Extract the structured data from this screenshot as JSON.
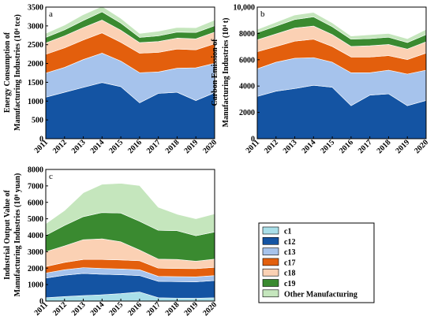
{
  "colors": {
    "c1": "#a9dfe9",
    "c12": "#1454a3",
    "c13": "#a6c3ec",
    "c17": "#e35f0d",
    "c18": "#fbd1b4",
    "c19": "#3a8a30",
    "Other Manufacturing": "#c5e6bd"
  },
  "legend": [
    "c1",
    "c12",
    "c13",
    "c17",
    "c18",
    "c19",
    "Other Manufacturing"
  ],
  "chart_data": [
    {
      "type": "area",
      "stacked": true,
      "panel_label": "a",
      "x": [
        "2011",
        "2012",
        "2013",
        "2014",
        "2015",
        "2016",
        "2017",
        "2018",
        "2019",
        "2020"
      ],
      "ylabel_lines": [
        "Energy Consumption of",
        "Manufacturing Industries (10⁴ tce)"
      ],
      "ylim": [
        0,
        3500
      ],
      "yticks": [
        "0",
        "500",
        "1000",
        "1500",
        "2000",
        "2500",
        "3000",
        "3500"
      ],
      "ytick_values": [
        0,
        500,
        1000,
        1500,
        2000,
        2500,
        3000,
        3500
      ],
      "series": [
        {
          "name": "c1",
          "values": [
            5,
            5,
            5,
            5,
            5,
            5,
            5,
            5,
            5,
            5
          ]
        },
        {
          "name": "c12",
          "values": [
            1100,
            1230,
            1360,
            1490,
            1380,
            950,
            1200,
            1230,
            1010,
            1220
          ]
        },
        {
          "name": "c13",
          "values": [
            640,
            660,
            740,
            780,
            680,
            800,
            570,
            640,
            870,
            780
          ]
        },
        {
          "name": "c17",
          "values": [
            500,
            520,
            520,
            540,
            500,
            520,
            520,
            510,
            480,
            520
          ]
        },
        {
          "name": "c18",
          "values": [
            300,
            320,
            330,
            340,
            320,
            280,
            290,
            290,
            290,
            310
          ]
        },
        {
          "name": "c19",
          "values": [
            150,
            160,
            190,
            220,
            190,
            140,
            150,
            160,
            170,
            170
          ]
        },
        {
          "name": "Other Manufacturing",
          "values": [
            105,
            125,
            155,
            145,
            125,
            105,
            125,
            125,
            125,
            150
          ]
        }
      ]
    },
    {
      "type": "area",
      "stacked": true,
      "panel_label": "b",
      "x": [
        "2011",
        "2012",
        "2013",
        "2014",
        "2015",
        "2016",
        "2017",
        "2018",
        "2019",
        "2020"
      ],
      "ylabel_lines": [
        "Carbon Emission of",
        "Manufacturing Industries (10⁴ t)"
      ],
      "ylim": [
        0,
        10000
      ],
      "yticks": [
        "0",
        "2000",
        "4000",
        "6000",
        "8000",
        "10,000"
      ],
      "ytick_values": [
        0,
        2000,
        4000,
        6000,
        8000,
        10000
      ],
      "series": [
        {
          "name": "c1",
          "values": [
            10,
            10,
            10,
            10,
            10,
            10,
            10,
            10,
            10,
            10
          ]
        },
        {
          "name": "c12",
          "values": [
            3200,
            3600,
            3800,
            4050,
            3900,
            2500,
            3300,
            3400,
            2500,
            2900
          ]
        },
        {
          "name": "c13",
          "values": [
            2100,
            2200,
            2300,
            2100,
            1900,
            2500,
            1700,
            1800,
            2400,
            2300
          ]
        },
        {
          "name": "c17",
          "values": [
            1300,
            1200,
            1300,
            1400,
            1200,
            1200,
            1200,
            1100,
            1100,
            1300
          ]
        },
        {
          "name": "c18",
          "values": [
            900,
            950,
            1000,
            1000,
            900,
            800,
            850,
            850,
            800,
            850
          ]
        },
        {
          "name": "c19",
          "values": [
            550,
            600,
            650,
            700,
            600,
            550,
            550,
            550,
            500,
            550
          ]
        },
        {
          "name": "Other Manufacturing",
          "values": [
            240,
            290,
            340,
            340,
            290,
            240,
            290,
            290,
            290,
            390
          ]
        }
      ]
    },
    {
      "type": "area",
      "stacked": true,
      "panel_label": "c",
      "x": [
        "2011",
        "2012",
        "2013",
        "2014",
        "2015",
        "2016",
        "2017",
        "2018",
        "2019",
        "2020"
      ],
      "ylabel_lines": [
        "Industrial Output Value of",
        "Manufacturing Industries (10⁸ yuan)"
      ],
      "ylim": [
        0,
        8000
      ],
      "yticks": [
        "0",
        "1000",
        "2000",
        "3000",
        "4000",
        "5000",
        "6000",
        "7000",
        "8000"
      ],
      "ytick_values": [
        0,
        1000,
        2000,
        3000,
        4000,
        5000,
        6000,
        7000,
        8000
      ],
      "series": [
        {
          "name": "c1",
          "values": [
            200,
            270,
            330,
            380,
            450,
            550,
            200,
            180,
            170,
            200
          ]
        },
        {
          "name": "c12",
          "values": [
            1200,
            1300,
            1350,
            1250,
            1150,
            1000,
            1000,
            1000,
            1000,
            1050
          ]
        },
        {
          "name": "c13",
          "values": [
            300,
            330,
            350,
            350,
            350,
            350,
            300,
            300,
            300,
            300
          ]
        },
        {
          "name": "c17",
          "values": [
            400,
            450,
            500,
            550,
            550,
            550,
            500,
            500,
            500,
            500
          ]
        },
        {
          "name": "c18",
          "values": [
            900,
            1000,
            1200,
            1250,
            1100,
            650,
            550,
            550,
            450,
            500
          ]
        },
        {
          "name": "c19",
          "values": [
            1000,
            1250,
            1400,
            1600,
            1750,
            1750,
            1750,
            1750,
            1550,
            1650
          ]
        },
        {
          "name": "Other Manufacturing",
          "values": [
            700,
            900,
            1450,
            1720,
            1810,
            2170,
            1400,
            1000,
            1030,
            1100
          ]
        }
      ]
    }
  ]
}
